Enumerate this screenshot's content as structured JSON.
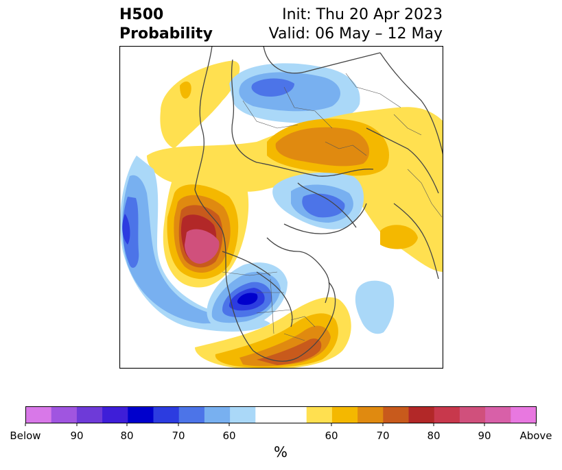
{
  "title": {
    "left_line1": "H500",
    "left_line2": "Probability",
    "right_line1": "Init: Thu 20 Apr 2023",
    "right_line2": "Valid: 06 May – 12 May"
  },
  "colorbar": {
    "unit": "%",
    "labels": [
      "Below",
      "90",
      "80",
      "70",
      "60",
      "60",
      "70",
      "80",
      "90",
      "Above"
    ],
    "colors": [
      "#d878e8",
      "#a055e0",
      "#6e3ad8",
      "#3e1ed8",
      "#0000cc",
      "#2c3ce0",
      "#4c74e8",
      "#78b0f0",
      "#aad8f8",
      "#ffffff",
      "#ffe050",
      "#f4b800",
      "#e08a10",
      "#c85a1c",
      "#b22828",
      "#c8384c",
      "#d0507c",
      "#d860a8",
      "#e878e0"
    ]
  },
  "map": {
    "region": "Northern Hemisphere polar projection",
    "anomaly_colors": {
      "above_60": "#ffe050",
      "above_65": "#f4b800",
      "above_70": "#e08a10",
      "above_75": "#c85a1c",
      "above_80": "#b22828",
      "above_90": "#d0507c",
      "below_60": "#aad8f8",
      "below_65": "#78b0f0",
      "below_70": "#4c74e8",
      "below_75": "#2c3ce0",
      "below_80": "#0000cc"
    }
  }
}
